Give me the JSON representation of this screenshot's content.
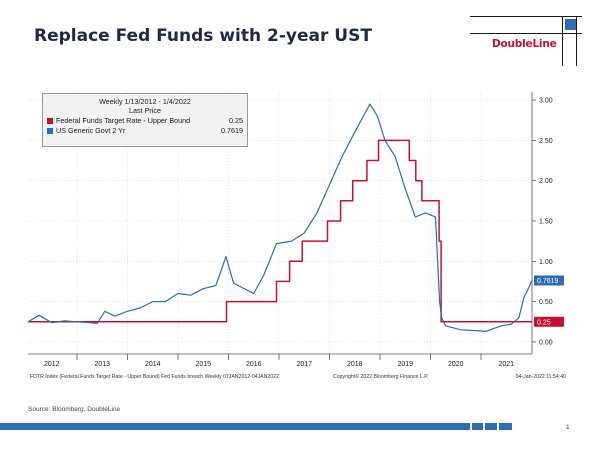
{
  "slide": {
    "title": "Replace Fed Funds with 2-year UST",
    "logo_text": "DoubleLine",
    "source": "Source: Bloomberg, DoubleLine",
    "page_number": "1"
  },
  "colors": {
    "fed_funds": "#c8102e",
    "ust_2yr": "#2a6db5",
    "title": "#1f2a44"
  },
  "chart_data": {
    "type": "line",
    "legend": {
      "title": "Weekly 1/13/2012 - 1/4/2022",
      "subtitle": "Last Price",
      "placement": "top-left"
    },
    "x_tick_labels": [
      "2012",
      "2013",
      "2014",
      "2015",
      "2016",
      "2017",
      "2018",
      "2019",
      "2020",
      "2021"
    ],
    "xlim": [
      2012.03,
      2022.01
    ],
    "y_ticks": [
      "0.00",
      "0.50",
      "1.00",
      "1.50",
      "2.00",
      "2.50",
      "3.00"
    ],
    "ylim": [
      -0.15,
      3.1
    ],
    "y_axis_position": "right",
    "bottom_left_note": "FDTR Index (Federal Funds Target Rate - Upper Bound) Fed Funds breach  Weekly 07JAN2012-04JAN2022",
    "bottom_center_note": "Copyright© 2022 Bloomberg Finance L.P.",
    "bottom_right_note": "04-Jan-2022 11:54:40",
    "series": [
      {
        "name": "Federal Funds Target Rate - Upper Bound",
        "last_price": "0.25",
        "color": "#c8102e",
        "step": true,
        "points": [
          [
            2012.03,
            0.25
          ],
          [
            2015.96,
            0.25
          ],
          [
            2015.96,
            0.5
          ],
          [
            2016.95,
            0.5
          ],
          [
            2016.95,
            0.75
          ],
          [
            2017.21,
            0.75
          ],
          [
            2017.21,
            1.0
          ],
          [
            2017.46,
            1.0
          ],
          [
            2017.46,
            1.25
          ],
          [
            2017.96,
            1.25
          ],
          [
            2017.96,
            1.5
          ],
          [
            2018.22,
            1.5
          ],
          [
            2018.22,
            1.75
          ],
          [
            2018.46,
            1.75
          ],
          [
            2018.46,
            2.0
          ],
          [
            2018.74,
            2.0
          ],
          [
            2018.74,
            2.25
          ],
          [
            2018.97,
            2.25
          ],
          [
            2018.97,
            2.5
          ],
          [
            2019.58,
            2.5
          ],
          [
            2019.58,
            2.25
          ],
          [
            2019.71,
            2.25
          ],
          [
            2019.71,
            2.0
          ],
          [
            2019.83,
            2.0
          ],
          [
            2019.83,
            1.75
          ],
          [
            2020.17,
            1.75
          ],
          [
            2020.17,
            1.25
          ],
          [
            2020.21,
            1.25
          ],
          [
            2020.21,
            0.25
          ],
          [
            2022.01,
            0.25
          ]
        ]
      },
      {
        "name": "US Generic Govt 2 Yr",
        "last_price": "0.7619",
        "color": "#2a6db5",
        "step": false,
        "points": [
          [
            2012.03,
            0.25
          ],
          [
            2012.25,
            0.33
          ],
          [
            2012.5,
            0.24
          ],
          [
            2012.75,
            0.26
          ],
          [
            2013.0,
            0.25
          ],
          [
            2013.25,
            0.24
          ],
          [
            2013.4,
            0.23
          ],
          [
            2013.55,
            0.38
          ],
          [
            2013.75,
            0.32
          ],
          [
            2014.0,
            0.38
          ],
          [
            2014.25,
            0.42
          ],
          [
            2014.5,
            0.5
          ],
          [
            2014.75,
            0.5
          ],
          [
            2015.0,
            0.6
          ],
          [
            2015.25,
            0.58
          ],
          [
            2015.5,
            0.66
          ],
          [
            2015.75,
            0.7
          ],
          [
            2015.95,
            1.06
          ],
          [
            2016.1,
            0.73
          ],
          [
            2016.5,
            0.6
          ],
          [
            2016.7,
            0.83
          ],
          [
            2016.95,
            1.22
          ],
          [
            2017.25,
            1.25
          ],
          [
            2017.5,
            1.35
          ],
          [
            2017.75,
            1.6
          ],
          [
            2018.0,
            1.95
          ],
          [
            2018.25,
            2.3
          ],
          [
            2018.5,
            2.6
          ],
          [
            2018.8,
            2.95
          ],
          [
            2018.95,
            2.8
          ],
          [
            2019.1,
            2.5
          ],
          [
            2019.3,
            2.3
          ],
          [
            2019.5,
            1.9
          ],
          [
            2019.7,
            1.55
          ],
          [
            2019.9,
            1.6
          ],
          [
            2020.1,
            1.55
          ],
          [
            2020.18,
            0.5
          ],
          [
            2020.22,
            0.3
          ],
          [
            2020.3,
            0.2
          ],
          [
            2020.6,
            0.15
          ],
          [
            2020.9,
            0.14
          ],
          [
            2021.1,
            0.13
          ],
          [
            2021.4,
            0.2
          ],
          [
            2021.6,
            0.22
          ],
          [
            2021.75,
            0.3
          ],
          [
            2021.85,
            0.55
          ],
          [
            2021.95,
            0.68
          ],
          [
            2022.01,
            0.7619
          ]
        ]
      }
    ]
  }
}
